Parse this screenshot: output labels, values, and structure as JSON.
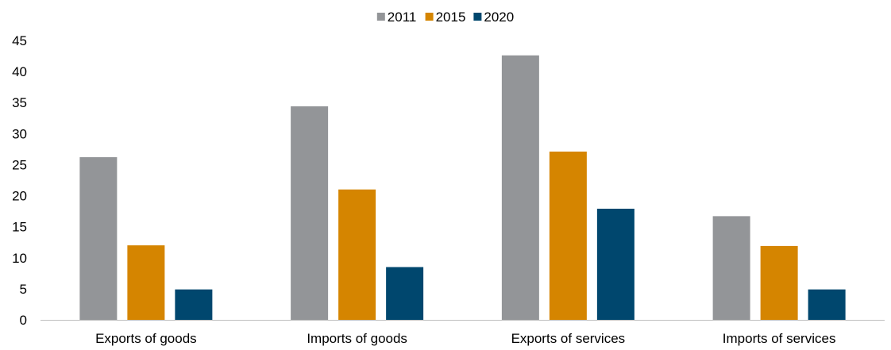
{
  "chart_data": {
    "type": "bar",
    "title": "",
    "xlabel": "",
    "ylabel": "",
    "categories": [
      "Exports of goods",
      "Imports of goods",
      "Exports of services",
      "Imports of services"
    ],
    "series": [
      {
        "name": "2011",
        "color": "#939598",
        "values": [
          26.2,
          34.4,
          42.6,
          16.7
        ]
      },
      {
        "name": "2015",
        "color": "#D58500",
        "values": [
          12.0,
          21.0,
          27.1,
          11.9
        ]
      },
      {
        "name": "2020",
        "color": "#00476E",
        "values": [
          4.9,
          8.5,
          17.9,
          4.9
        ]
      }
    ],
    "ylim": [
      0,
      45
    ],
    "yticks": [
      0,
      5,
      10,
      15,
      20,
      25,
      30,
      35,
      40,
      45
    ],
    "grid": false,
    "legend_position": "top-center"
  }
}
